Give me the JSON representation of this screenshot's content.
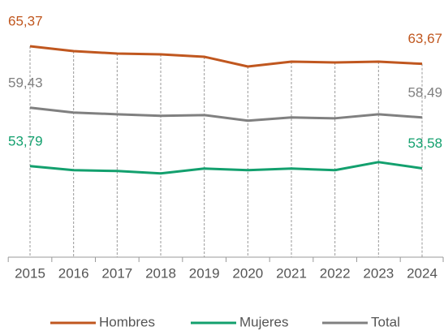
{
  "chart_data": {
    "type": "line",
    "categories": [
      "2015",
      "2016",
      "2017",
      "2018",
      "2019",
      "2020",
      "2021",
      "2022",
      "2023",
      "2024"
    ],
    "series": [
      {
        "name": "Hombres",
        "color": "#c0571f",
        "values": [
          65.37,
          64.9,
          64.66,
          64.58,
          64.35,
          63.41,
          63.88,
          63.8,
          63.88,
          63.67
        ],
        "value_labels": [
          "65,37",
          null,
          null,
          null,
          null,
          null,
          null,
          null,
          null,
          "63,67"
        ]
      },
      {
        "name": "Mujeres",
        "color": "#13a06e",
        "values": [
          53.79,
          53.4,
          53.32,
          53.09,
          53.56,
          53.4,
          53.56,
          53.4,
          54.18,
          53.58
        ],
        "value_labels": [
          "53,79",
          null,
          null,
          null,
          null,
          null,
          null,
          null,
          null,
          "53,58"
        ]
      },
      {
        "name": "Total",
        "color": "#808080",
        "values": [
          59.43,
          58.96,
          58.8,
          58.65,
          58.72,
          58.18,
          58.49,
          58.41,
          58.8,
          58.49
        ],
        "value_labels": [
          "59,43",
          null,
          null,
          null,
          null,
          null,
          null,
          null,
          null,
          "58,49"
        ]
      }
    ],
    "ylim": [
      45,
      68
    ],
    "grid": false,
    "legend": "bottom"
  }
}
